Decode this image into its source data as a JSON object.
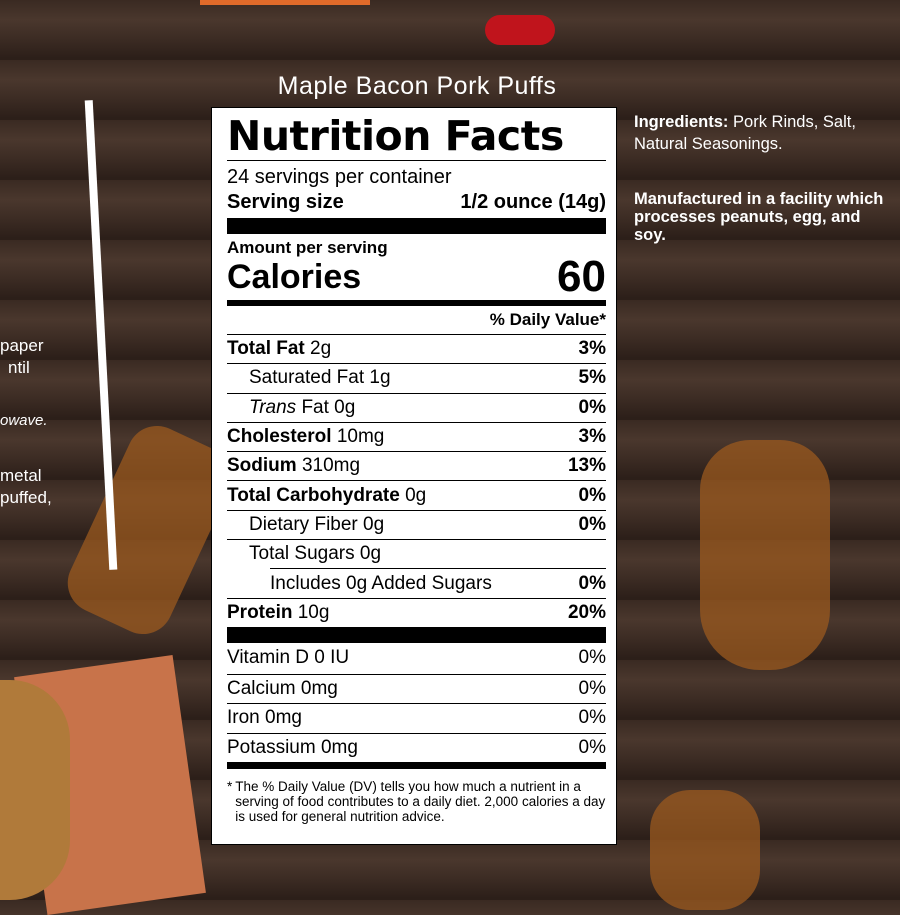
{
  "product_name": "Maple Bacon Pork Puffs",
  "label": {
    "title": "Nutrition Facts",
    "servings": "24 servings per container",
    "serving_size_label": "Serving size",
    "serving_size_value": "1/2 ounce (14g)",
    "amount_per_serving": "Amount per serving",
    "calories_label": "Calories",
    "calories_value": "60",
    "dv_header": "% Daily Value*",
    "nutrients": [
      {
        "name": "Total Fat",
        "amount": "2g",
        "dv": "3%"
      },
      {
        "name": "Saturated Fat",
        "amount": "1g",
        "dv": "5%"
      },
      {
        "name": "Trans",
        "suffix": "Fat 0g",
        "dv": "0%"
      },
      {
        "name": "Cholesterol",
        "amount": "10mg",
        "dv": "3%"
      },
      {
        "name": "Sodium",
        "amount": "310mg",
        "dv": "13%"
      },
      {
        "name": "Total Carbohydrate",
        "amount": "0g",
        "dv": "0%"
      },
      {
        "name": "Dietary Fiber",
        "amount": "0g",
        "dv": "0%"
      },
      {
        "name": "Total Sugars",
        "amount": "0g",
        "dv": ""
      },
      {
        "name": "Includes 0g Added Sugars",
        "amount": "",
        "dv": "0%"
      },
      {
        "name": "Protein",
        "amount": "10g",
        "dv": "20%"
      }
    ],
    "vitamins": [
      {
        "name": "Vitamin D 0 IU",
        "dv": "0%"
      },
      {
        "name": "Calcium 0mg",
        "dv": "0%"
      },
      {
        "name": "Iron 0mg",
        "dv": "0%"
      },
      {
        "name": "Potassium 0mg",
        "dv": "0%"
      }
    ],
    "footnote_star": "*",
    "footnote": "The % Daily Value (DV) tells you how much a nutrient in a serving of food contributes to a daily diet. 2,000 calories a day is used for general nutrition advice."
  },
  "ingredients": {
    "label": "Ingredients:",
    "text": "Pork Rinds, Salt, Natural Seasonings."
  },
  "allergen": "Manufactured in a facility which processes peanuts, egg, and soy.",
  "left_fragments": [
    "paper",
    "ntil",
    "owave.",
    "metal",
    "puffed,"
  ],
  "colors": {
    "wood": "#3a2a22",
    "accent_orange": "#9b5a1f",
    "label_bg": "#ffffff"
  }
}
